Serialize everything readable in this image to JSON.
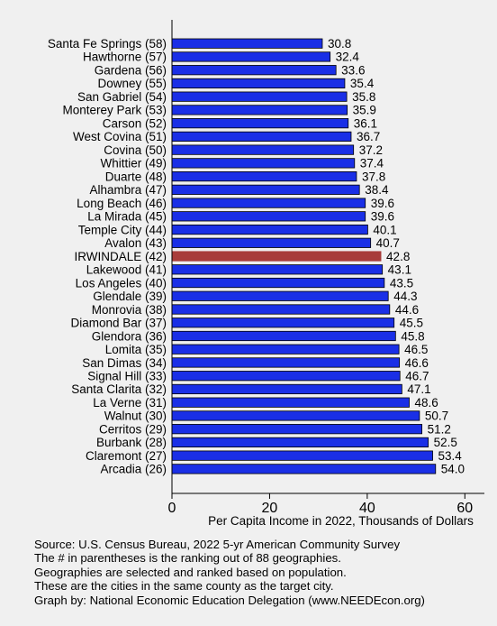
{
  "chart_data": {
    "type": "bar",
    "orientation": "horizontal",
    "categories": [
      "Santa Fe Springs (58)",
      "Hawthorne (57)",
      "Gardena (56)",
      "Downey (55)",
      "San Gabriel (54)",
      "Monterey Park (53)",
      "Carson (52)",
      "West Covina (51)",
      "Covina (50)",
      "Whittier (49)",
      "Duarte (48)",
      "Alhambra (47)",
      "Long Beach (46)",
      "La Mirada (45)",
      "Temple City (44)",
      "Avalon (43)",
      "IRWINDALE (42)",
      "Lakewood (41)",
      "Los Angeles (40)",
      "Glendale (39)",
      "Monrovia (38)",
      "Diamond Bar (37)",
      "Glendora (36)",
      "Lomita (35)",
      "San Dimas (34)",
      "Signal Hill (33)",
      "Santa Clarita (32)",
      "La Verne (31)",
      "Walnut (30)",
      "Cerritos (29)",
      "Burbank (28)",
      "Claremont (27)",
      "Arcadia (26)"
    ],
    "values": [
      30.8,
      32.4,
      33.6,
      35.4,
      35.8,
      35.9,
      36.1,
      36.7,
      37.2,
      37.4,
      37.8,
      38.4,
      39.6,
      39.6,
      40.1,
      40.7,
      42.8,
      43.1,
      43.5,
      44.3,
      44.6,
      45.5,
      45.8,
      46.5,
      46.6,
      46.7,
      47.1,
      48.6,
      50.7,
      51.2,
      52.5,
      53.4,
      54.0
    ],
    "value_labels": [
      "30.8",
      "32.4",
      "33.6",
      "35.4",
      "35.8",
      "35.9",
      "36.1",
      "36.7",
      "37.2",
      "37.4",
      "37.8",
      "38.4",
      "39.6",
      "39.6",
      "40.1",
      "40.7",
      "42.8",
      "43.1",
      "43.5",
      "44.3",
      "44.6",
      "45.5",
      "45.8",
      "46.5",
      "46.6",
      "46.7",
      "47.1",
      "48.6",
      "50.7",
      "51.2",
      "52.5",
      "53.4",
      "54.0"
    ],
    "highlight_index": 16,
    "xlabel": "Per Capita Income in 2022, Thousands of Dollars",
    "xlim": [
      0,
      64
    ],
    "xticks": [
      "0",
      "20",
      "40",
      "60"
    ],
    "grid": false,
    "colors": {
      "bar": "#1a2fe6",
      "highlight": "#a83c3a",
      "bar_edge": "#000000"
    }
  },
  "notes": [
    "Source: U.S. Census Bureau, 2022 5-yr American Community Survey",
    "The # in parentheses is the ranking out of 88 geographies.",
    "Geographies are selected and ranked based on population.",
    "These are the cities in the same county as the target city.",
    "Graph by: National Economic Education Delegation (www.NEEDEcon.org)"
  ]
}
